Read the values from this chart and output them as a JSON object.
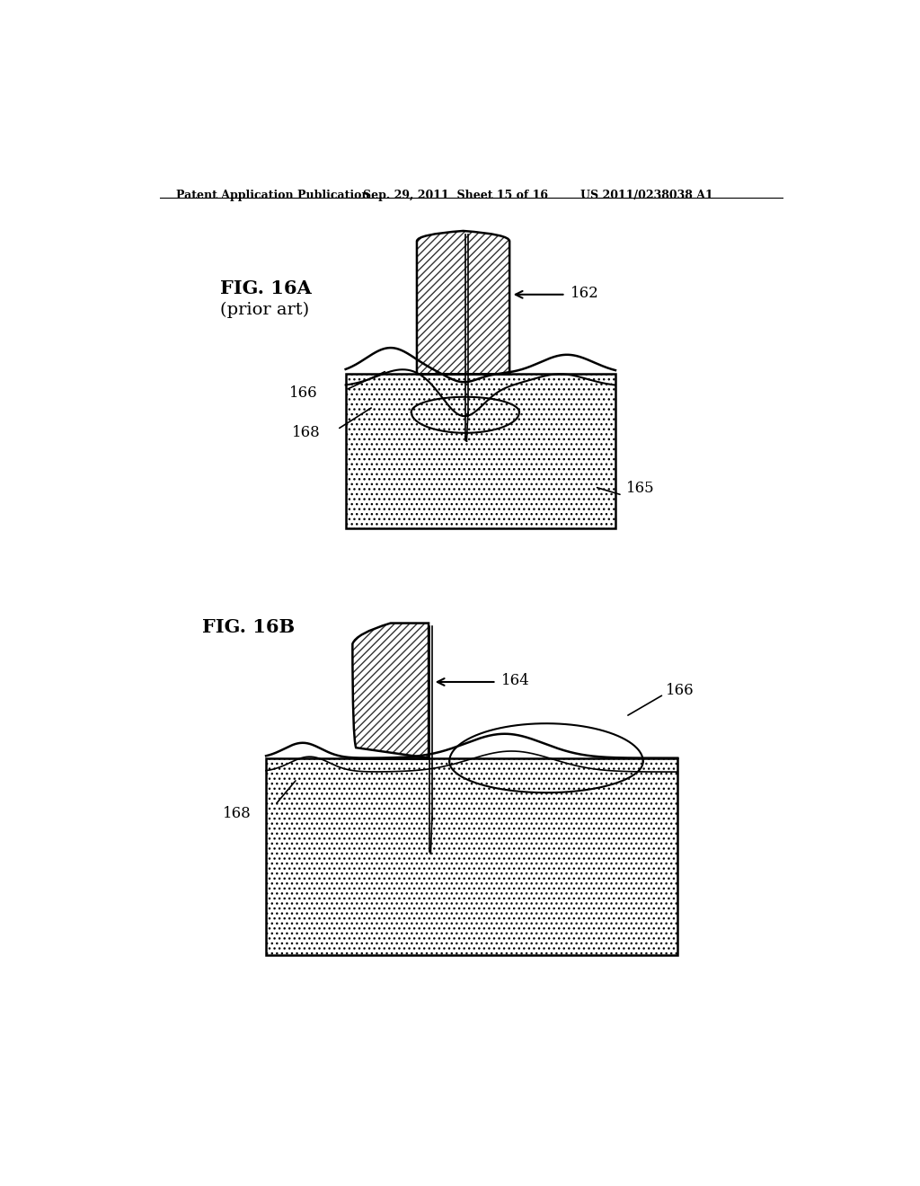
{
  "header_left": "Patent Application Publication",
  "header_mid": "Sep. 29, 2011  Sheet 15 of 16",
  "header_right": "US 2011/0238038 A1",
  "fig_a_label": "FIG. 16A",
  "fig_a_sub": "(prior art)",
  "fig_b_label": "FIG. 16B",
  "label_162": "162",
  "label_164": "164",
  "label_165": "165",
  "label_166": "166",
  "label_168": "168",
  "bg_color": "#ffffff",
  "line_color": "#000000"
}
